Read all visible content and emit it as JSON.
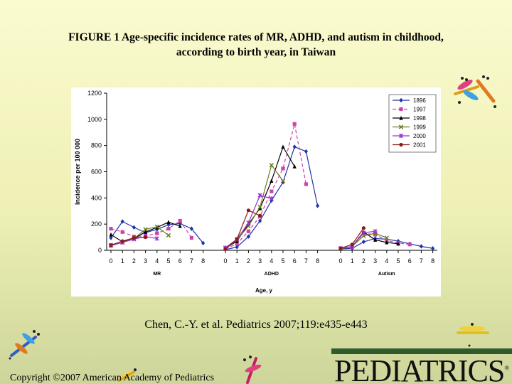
{
  "slide": {
    "title_line1": "FIGURE 1 Age-specific incidence rates of MR, ADHD, and autism in childhood,",
    "title_line2": "according to birth year, in Taiwan",
    "citation": "Chen, C.-Y. et al. Pediatrics 2007;119:e435-e443",
    "copyright": "Copyright ©2007 American Academy of Pediatrics",
    "logo_text": "PEDIATRICS",
    "logo_mark": "®"
  },
  "chart_data": {
    "type": "line",
    "title": "",
    "ylabel": "Incidence per 100 000",
    "xlabel": "Age, y",
    "ylim": [
      0,
      1200
    ],
    "yticks": [
      0,
      200,
      400,
      600,
      800,
      1000,
      1200
    ],
    "grid": false,
    "legend_placement": "top-right",
    "groups": [
      {
        "name": "MR",
        "ages": [
          "0",
          "1",
          "2",
          "3",
          "4",
          "5",
          "6",
          "7",
          "8"
        ]
      },
      {
        "name": "ADHD",
        "ages": [
          "0",
          "1",
          "2",
          "3",
          "4",
          "5",
          "6",
          "7",
          "8"
        ]
      },
      {
        "name": "Autism",
        "ages": [
          "0",
          "1",
          "2",
          "3",
          "4",
          "5",
          "6",
          "7",
          "8"
        ]
      }
    ],
    "series": [
      {
        "name": "1896",
        "color": "#2233aa",
        "dash": "",
        "marker": "diamond",
        "MR": [
          95,
          220,
          175,
          135,
          160,
          195,
          205,
          165,
          55
        ],
        "ADHD": [
          5,
          25,
          105,
          225,
          380,
          520,
          790,
          755,
          340
        ],
        "Autism": [
          10,
          15,
          65,
          90,
          85,
          70,
          50,
          30,
          15
        ]
      },
      {
        "name": "1997",
        "color": "#cc44aa",
        "dash": "5,3",
        "marker": "square",
        "MR": [
          165,
          140,
          105,
          110,
          130,
          165,
          225,
          95,
          null
        ],
        "ADHD": [
          10,
          50,
          145,
          260,
          450,
          625,
          965,
          505,
          null
        ],
        "Autism": [
          15,
          25,
          130,
          120,
          75,
          55,
          45,
          null,
          null
        ]
      },
      {
        "name": "1998",
        "color": "#000000",
        "dash": "",
        "marker": "triangle",
        "MR": [
          120,
          65,
          90,
          140,
          175,
          215,
          185,
          null,
          null
        ],
        "ADHD": [
          15,
          70,
          200,
          320,
          530,
          790,
          640,
          null,
          null
        ],
        "Autism": [
          10,
          30,
          140,
          80,
          60,
          50,
          null,
          null,
          null
        ]
      },
      {
        "name": "1999",
        "color": "#6b7a1e",
        "dash": "",
        "marker": "x",
        "MR": [
          40,
          60,
          90,
          160,
          180,
          115,
          null,
          null,
          null
        ],
        "ADHD": [
          15,
          80,
          185,
          330,
          650,
          530,
          null,
          null,
          null
        ],
        "Autism": [
          10,
          30,
          110,
          130,
          95,
          null,
          null,
          null,
          null
        ]
      },
      {
        "name": "2000",
        "color": "#9933cc",
        "dash": "",
        "marker": "star",
        "MR": [
          35,
          60,
          85,
          105,
          90,
          null,
          null,
          null,
          null
        ],
        "ADHD": [
          20,
          85,
          210,
          420,
          395,
          null,
          null,
          null,
          null
        ],
        "Autism": [
          15,
          30,
          135,
          145,
          null,
          null,
          null,
          null,
          null
        ]
      },
      {
        "name": "2001",
        "color": "#8b1a1a",
        "dash": "",
        "marker": "circle",
        "MR": [
          40,
          70,
          95,
          100,
          null,
          null,
          null,
          null,
          null
        ],
        "ADHD": [
          10,
          85,
          305,
          265,
          null,
          null,
          null,
          null,
          null
        ],
        "Autism": [
          15,
          45,
          170,
          null,
          null,
          null,
          null,
          null,
          null
        ]
      }
    ]
  }
}
